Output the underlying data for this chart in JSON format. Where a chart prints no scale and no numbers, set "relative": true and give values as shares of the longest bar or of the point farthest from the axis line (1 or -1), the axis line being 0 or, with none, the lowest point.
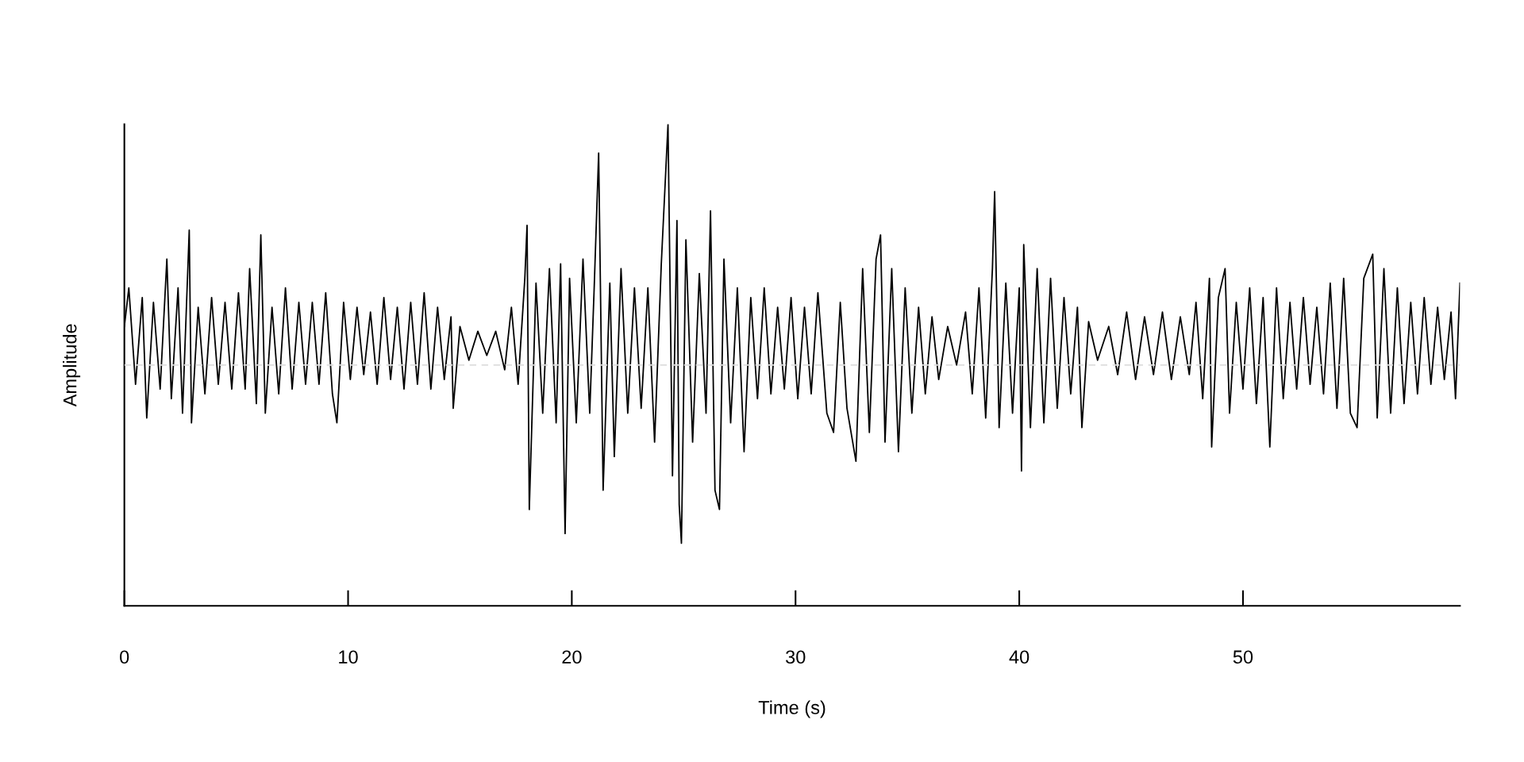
{
  "chart_data": {
    "type": "line",
    "relative": true,
    "xlabel": "Time (s)",
    "ylabel": "Amplitude",
    "xlim": [
      0,
      59.7
    ],
    "xticks": [
      0,
      10,
      20,
      30,
      40,
      50
    ],
    "x": [
      0,
      0.2,
      0.5,
      0.8,
      1.0,
      1.3,
      1.6,
      1.9,
      2.1,
      2.4,
      2.6,
      2.9,
      3.0,
      3.3,
      3.6,
      3.9,
      4.2,
      4.5,
      4.8,
      5.1,
      5.4,
      5.6,
      5.9,
      6.1,
      6.3,
      6.6,
      6.9,
      7.2,
      7.5,
      7.8,
      8.1,
      8.4,
      8.7,
      9.0,
      9.3,
      9.5,
      9.8,
      10.1,
      10.4,
      10.7,
      11.0,
      11.3,
      11.6,
      11.9,
      12.2,
      12.5,
      12.8,
      13.1,
      13.4,
      13.7,
      14.0,
      14.3,
      14.6,
      14.7,
      15.0,
      15.4,
      15.8,
      16.2,
      16.6,
      17.0,
      17.3,
      17.6,
      17.9,
      18.0,
      18.1,
      18.4,
      18.7,
      19.0,
      19.3,
      19.5,
      19.7,
      19.9,
      20.2,
      20.5,
      20.8,
      21.0,
      21.2,
      21.4,
      21.7,
      21.9,
      22.2,
      22.5,
      22.8,
      23.1,
      23.4,
      23.7,
      24.0,
      24.3,
      24.5,
      24.7,
      24.8,
      24.9,
      25.1,
      25.4,
      25.7,
      26.0,
      26.2,
      26.4,
      26.6,
      26.8,
      27.1,
      27.4,
      27.7,
      28.0,
      28.3,
      28.6,
      28.9,
      29.2,
      29.5,
      29.8,
      30.1,
      30.4,
      30.7,
      31.0,
      31.4,
      31.7,
      32.0,
      32.3,
      32.7,
      33.0,
      33.3,
      33.6,
      33.8,
      34.0,
      34.3,
      34.6,
      34.9,
      35.2,
      35.5,
      35.8,
      36.1,
      36.4,
      36.8,
      37.2,
      37.6,
      37.9,
      38.2,
      38.5,
      38.8,
      38.9,
      39.1,
      39.4,
      39.7,
      40.0,
      40.1,
      40.2,
      40.5,
      40.8,
      41.1,
      41.4,
      41.7,
      42.0,
      42.3,
      42.6,
      42.8,
      43.1,
      43.5,
      44.0,
      44.4,
      44.8,
      45.2,
      45.6,
      46.0,
      46.4,
      46.8,
      47.2,
      47.6,
      47.9,
      48.2,
      48.5,
      48.6,
      48.9,
      49.2,
      49.4,
      49.7,
      50.0,
      50.3,
      50.6,
      50.9,
      51.2,
      51.5,
      51.8,
      52.1,
      52.4,
      52.7,
      53.0,
      53.3,
      53.6,
      53.9,
      54.2,
      54.5,
      54.8,
      55.1,
      55.4,
      55.8,
      56.0,
      56.3,
      56.6,
      56.9,
      57.2,
      57.5,
      57.8,
      58.1,
      58.4,
      58.7,
      59.0,
      59.3,
      59.5,
      59.7
    ],
    "series": [
      {
        "color": "#000000",
        "values": [
          0.58,
          0.66,
          0.46,
          0.64,
          0.39,
          0.63,
          0.45,
          0.72,
          0.43,
          0.66,
          0.4,
          0.78,
          0.38,
          0.62,
          0.44,
          0.64,
          0.46,
          0.63,
          0.45,
          0.65,
          0.45,
          0.7,
          0.42,
          0.77,
          0.4,
          0.62,
          0.44,
          0.66,
          0.45,
          0.63,
          0.46,
          0.63,
          0.46,
          0.65,
          0.44,
          0.38,
          0.63,
          0.47,
          0.62,
          0.48,
          0.61,
          0.46,
          0.64,
          0.47,
          0.62,
          0.45,
          0.63,
          0.46,
          0.65,
          0.45,
          0.62,
          0.47,
          0.6,
          0.41,
          0.58,
          0.51,
          0.57,
          0.52,
          0.57,
          0.49,
          0.62,
          0.46,
          0.68,
          0.79,
          0.2,
          0.67,
          0.4,
          0.7,
          0.38,
          0.71,
          0.15,
          0.68,
          0.38,
          0.72,
          0.4,
          0.66,
          0.94,
          0.24,
          0.67,
          0.31,
          0.7,
          0.4,
          0.66,
          0.41,
          0.66,
          0.34,
          0.71,
          1.0,
          0.27,
          0.8,
          0.21,
          0.13,
          0.76,
          0.34,
          0.69,
          0.4,
          0.82,
          0.24,
          0.2,
          0.72,
          0.38,
          0.66,
          0.32,
          0.64,
          0.43,
          0.66,
          0.44,
          0.62,
          0.45,
          0.64,
          0.43,
          0.62,
          0.44,
          0.65,
          0.4,
          0.36,
          0.63,
          0.41,
          0.3,
          0.7,
          0.36,
          0.72,
          0.77,
          0.34,
          0.7,
          0.32,
          0.66,
          0.4,
          0.62,
          0.44,
          0.6,
          0.47,
          0.58,
          0.5,
          0.61,
          0.44,
          0.66,
          0.39,
          0.7,
          0.86,
          0.37,
          0.67,
          0.4,
          0.66,
          0.28,
          0.75,
          0.37,
          0.7,
          0.38,
          0.68,
          0.41,
          0.64,
          0.44,
          0.62,
          0.37,
          0.59,
          0.51,
          0.58,
          0.48,
          0.61,
          0.47,
          0.6,
          0.48,
          0.61,
          0.47,
          0.6,
          0.48,
          0.63,
          0.43,
          0.68,
          0.33,
          0.64,
          0.7,
          0.4,
          0.63,
          0.45,
          0.66,
          0.42,
          0.64,
          0.33,
          0.66,
          0.43,
          0.63,
          0.45,
          0.64,
          0.46,
          0.62,
          0.44,
          0.67,
          0.41,
          0.68,
          0.4,
          0.37,
          0.68,
          0.73,
          0.39,
          0.7,
          0.4,
          0.66,
          0.42,
          0.63,
          0.44,
          0.64,
          0.46,
          0.62,
          0.47,
          0.61,
          0.43,
          0.67
        ]
      }
    ],
    "ref_lines": [
      {
        "axis": "y",
        "value": 0.5,
        "color": "#dddddd",
        "line_style": "dashed"
      }
    ]
  }
}
